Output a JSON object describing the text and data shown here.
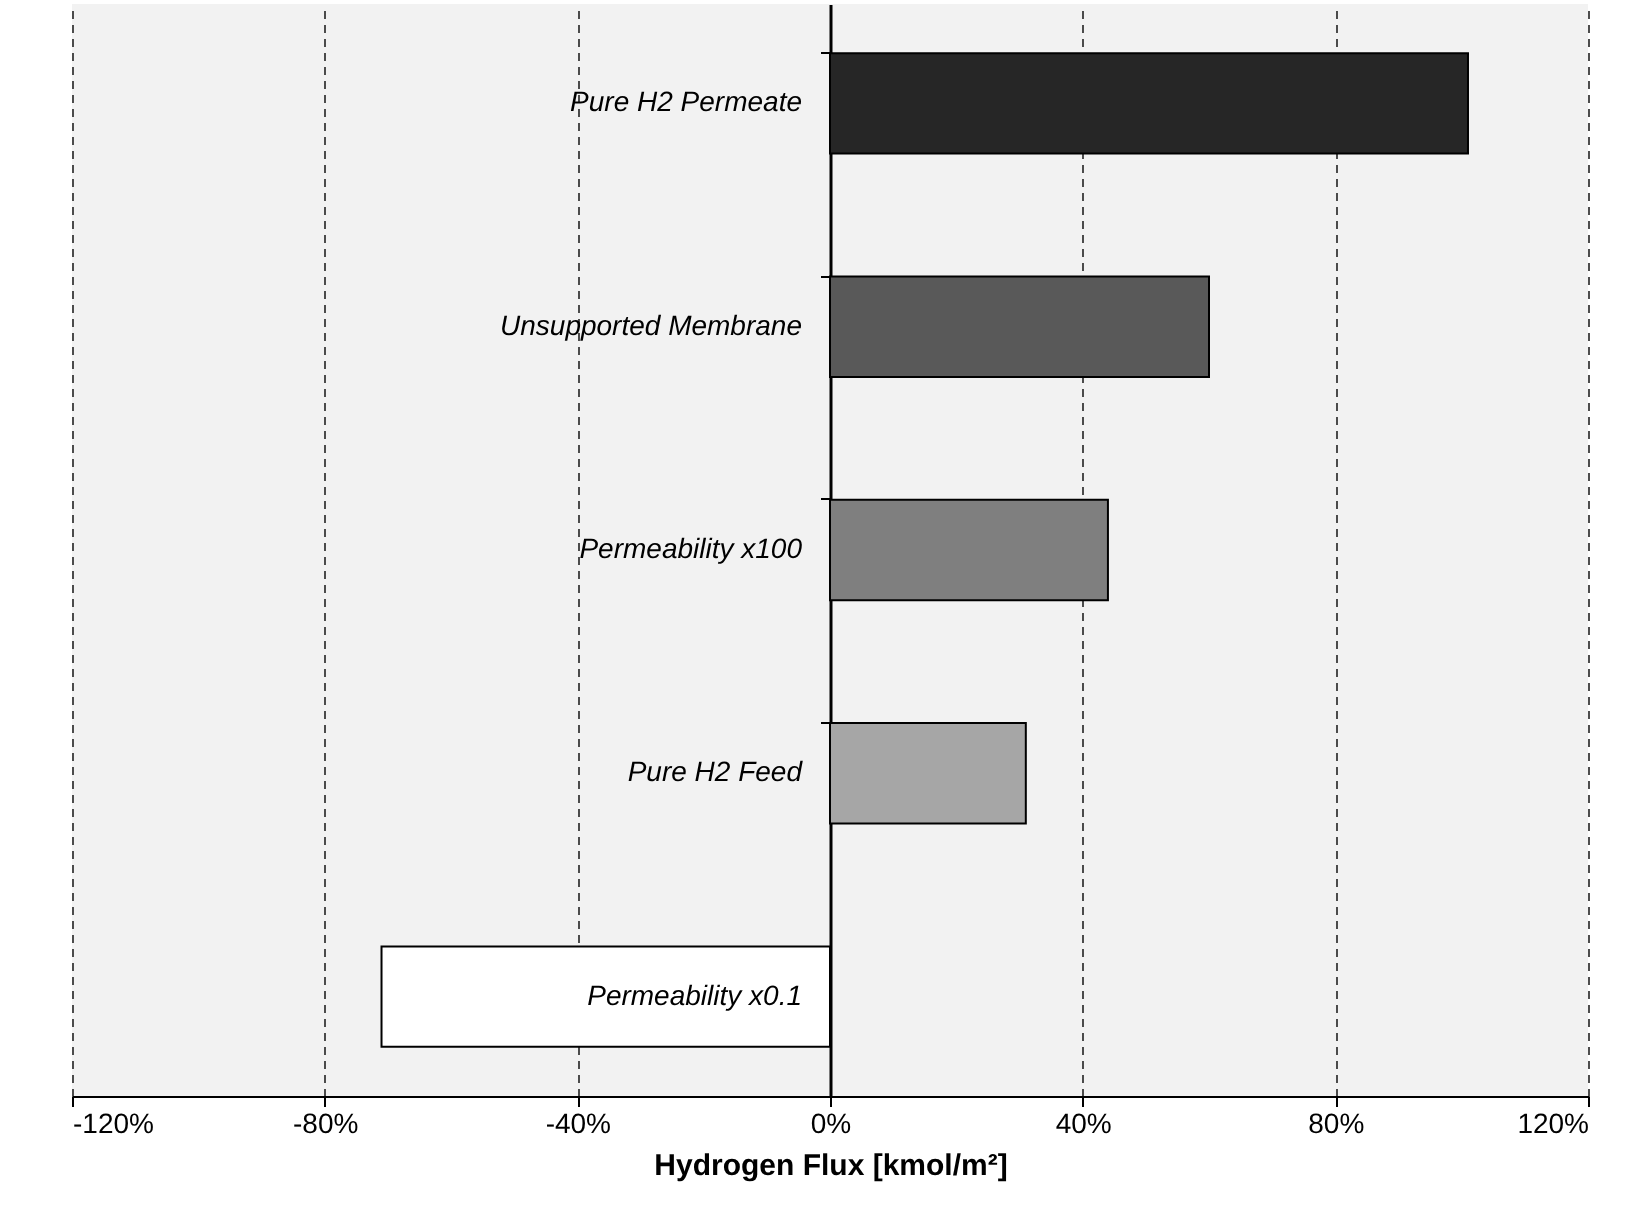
{
  "chart_data": {
    "type": "bar",
    "orientation": "horizontal",
    "xlabel": "Hydrogen Flux [kmol/m²]",
    "categories": [
      "Pure H2 Permeate",
      "Unsupported Membrane",
      "Permeability x100",
      "Pure H2 Feed",
      "Permeability x0.1"
    ],
    "values": [
      101,
      60,
      44,
      31,
      -71
    ],
    "colors": [
      "#262626",
      "#595959",
      "#7f7f7f",
      "#a6a6a6",
      "#ffffff"
    ],
    "xlim": [
      -120,
      120
    ],
    "xticks": [
      {
        "value": -120,
        "label": "-120%"
      },
      {
        "value": -80,
        "label": "-80%"
      },
      {
        "value": -40,
        "label": "-40%"
      },
      {
        "value": 0,
        "label": "0%"
      },
      {
        "value": 40,
        "label": "40%"
      },
      {
        "value": 80,
        "label": "80%"
      },
      {
        "value": 120,
        "label": "120%"
      }
    ],
    "grid": "x"
  }
}
